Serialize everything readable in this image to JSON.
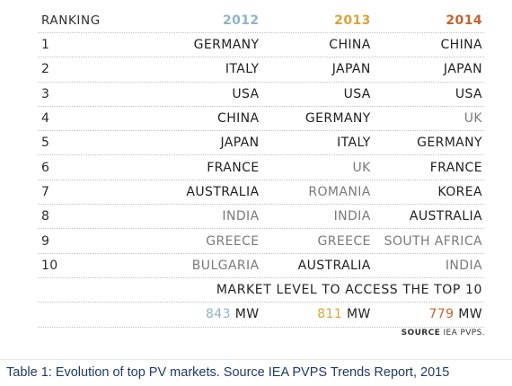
{
  "header": {
    "ranking_label": "RANKING",
    "year_2012": "2012",
    "year_2013": "2013",
    "year_2014": "2014"
  },
  "rows": [
    {
      "rank": "1",
      "y2012": "GERMANY",
      "y2013": "CHINA",
      "y2014": "CHINA"
    },
    {
      "rank": "2",
      "y2012": "ITALY",
      "y2013": "JAPAN",
      "y2014": "JAPAN"
    },
    {
      "rank": "3",
      "y2012": "USA",
      "y2013": "USA",
      "y2014": "USA"
    },
    {
      "rank": "4",
      "y2012": "CHINA",
      "y2013": "GERMANY",
      "y2014": "UK"
    },
    {
      "rank": "5",
      "y2012": "JAPAN",
      "y2013": "ITALY",
      "y2014": "GERMANY"
    },
    {
      "rank": "6",
      "y2012": "FRANCE",
      "y2013": "UK",
      "y2014": "FRANCE"
    },
    {
      "rank": "7",
      "y2012": "AUSTRALIA",
      "y2013": "ROMANIA",
      "y2014": "KOREA"
    },
    {
      "rank": "8",
      "y2012": "INDIA",
      "y2013": "INDIA",
      "y2014": "AUSTRALIA"
    },
    {
      "rank": "9",
      "y2012": "GREECE",
      "y2013": "GREECE",
      "y2014": "SOUTH AFRICA"
    },
    {
      "rank": "10",
      "y2012": "BULGARIA",
      "y2013": "AUSTRALIA",
      "y2014": "INDIA"
    }
  ],
  "market_level": {
    "label": "MARKET LEVEL TO ACCESS THE TOP 10",
    "v2012": "843",
    "v2013": "811",
    "v2014": "779",
    "unit": "MW"
  },
  "source": {
    "label": "SOURCE",
    "text": "IEA PVPS."
  },
  "caption": "Table 1: Evolution of top PV markets. Source IEA PVPS Trends Report, 2015",
  "colors": {
    "year_2012": "#8fb3c9",
    "year_2013": "#d8a43a",
    "year_2014": "#c0642d",
    "caption": "#1f3a63"
  }
}
